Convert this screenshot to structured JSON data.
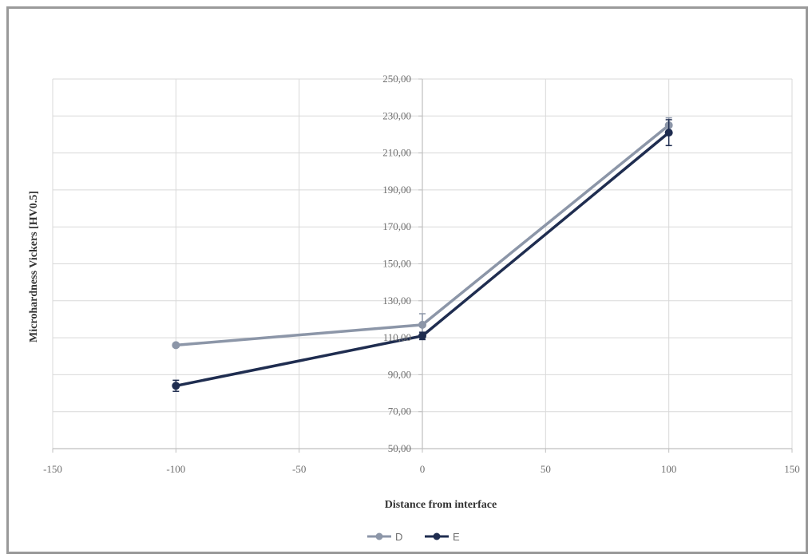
{
  "chart_data": {
    "type": "line",
    "title": "",
    "xlabel": "Distance from interface",
    "ylabel": "Microhardness Vickers [HV0.5]",
    "xlim": [
      -150,
      150
    ],
    "ylim": [
      50,
      250
    ],
    "x_ticks": [
      -150,
      -100,
      -50,
      0,
      50,
      100,
      150
    ],
    "x_tick_labels": [
      "-150",
      "-100",
      "-50",
      "0",
      "50",
      "100",
      "150"
    ],
    "y_ticks": [
      50,
      70,
      90,
      110,
      130,
      150,
      170,
      190,
      210,
      230,
      250
    ],
    "y_tick_labels": [
      "50,00",
      "70,00",
      "90,00",
      "110,00",
      "130,00",
      "150,00",
      "170,00",
      "190,00",
      "210,00",
      "230,00",
      "250,00"
    ],
    "grid": true,
    "legend_position": "bottom",
    "series": [
      {
        "name": "D",
        "color": "#8c96a8",
        "x": [
          -100,
          0,
          100
        ],
        "y": [
          106,
          117,
          225
        ],
        "error": [
          1,
          6,
          4
        ]
      },
      {
        "name": "E",
        "color": "#1f2d50",
        "x": [
          -100,
          0,
          100
        ],
        "y": [
          84,
          111,
          221
        ],
        "error": [
          3,
          2,
          7
        ]
      }
    ]
  }
}
